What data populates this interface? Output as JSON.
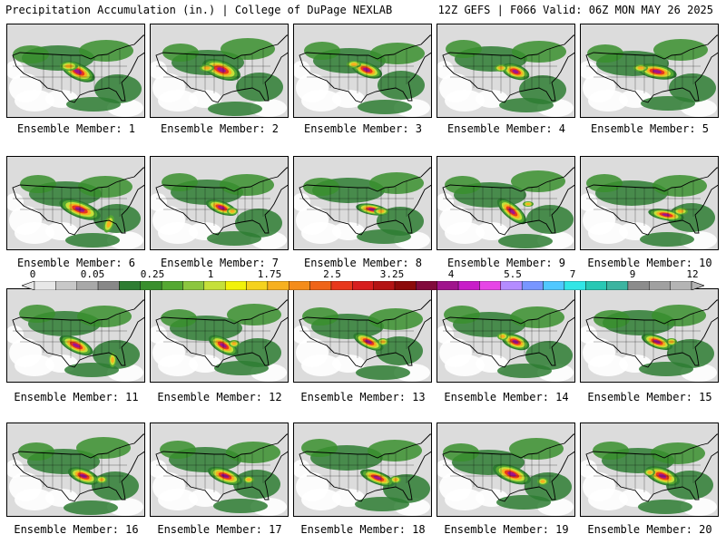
{
  "header": {
    "left_title": "Precipitation Accumulation (in.) | College of DuPage NEXLAB",
    "right_title": "12Z GEFS | F066 Valid: 06Z MON MAY 26 2025"
  },
  "colorbar": {
    "labels": [
      "0",
      "0.05",
      "0.25",
      "1",
      "1.75",
      "2.5",
      "3.25",
      "4",
      "5.5",
      "7",
      "9",
      "12"
    ],
    "colors": [
      "#e8e8e8",
      "#c8c8c8",
      "#a8a8a8",
      "#888888",
      "#2e7d32",
      "#3a8f2e",
      "#55a832",
      "#8cc63f",
      "#c6e03a",
      "#f2f20a",
      "#f5d21e",
      "#f7b01f",
      "#f48c1a",
      "#ef6418",
      "#e8381c",
      "#d71e1e",
      "#b41414",
      "#8c0a0a",
      "#820a3c",
      "#a0148c",
      "#c81ec8",
      "#e646e6",
      "#b48cff",
      "#7896ff",
      "#50c8ff",
      "#32e6e6",
      "#28c8b4",
      "#3cb4a0",
      "#8c8c8c",
      "#a0a0a0",
      "#b4b4b4"
    ]
  },
  "members": [
    {
      "label": "Ensemble Member: 1"
    },
    {
      "label": "Ensemble Member: 2"
    },
    {
      "label": "Ensemble Member: 3"
    },
    {
      "label": "Ensemble Member: 4"
    },
    {
      "label": "Ensemble Member: 5"
    },
    {
      "label": "Ensemble Member: 6"
    },
    {
      "label": "Ensemble Member: 7"
    },
    {
      "label": "Ensemble Member: 8"
    },
    {
      "label": "Ensemble Member: 9"
    },
    {
      "label": "Ensemble Member: 10"
    },
    {
      "label": "Ensemble Member: 11"
    },
    {
      "label": "Ensemble Member: 12"
    },
    {
      "label": "Ensemble Member: 13"
    },
    {
      "label": "Ensemble Member: 14"
    },
    {
      "label": "Ensemble Member: 15"
    },
    {
      "label": "Ensemble Member: 16"
    },
    {
      "label": "Ensemble Member: 17"
    },
    {
      "label": "Ensemble Member: 18"
    },
    {
      "label": "Ensemble Member: 19"
    },
    {
      "label": "Ensemble Member: 20"
    }
  ]
}
